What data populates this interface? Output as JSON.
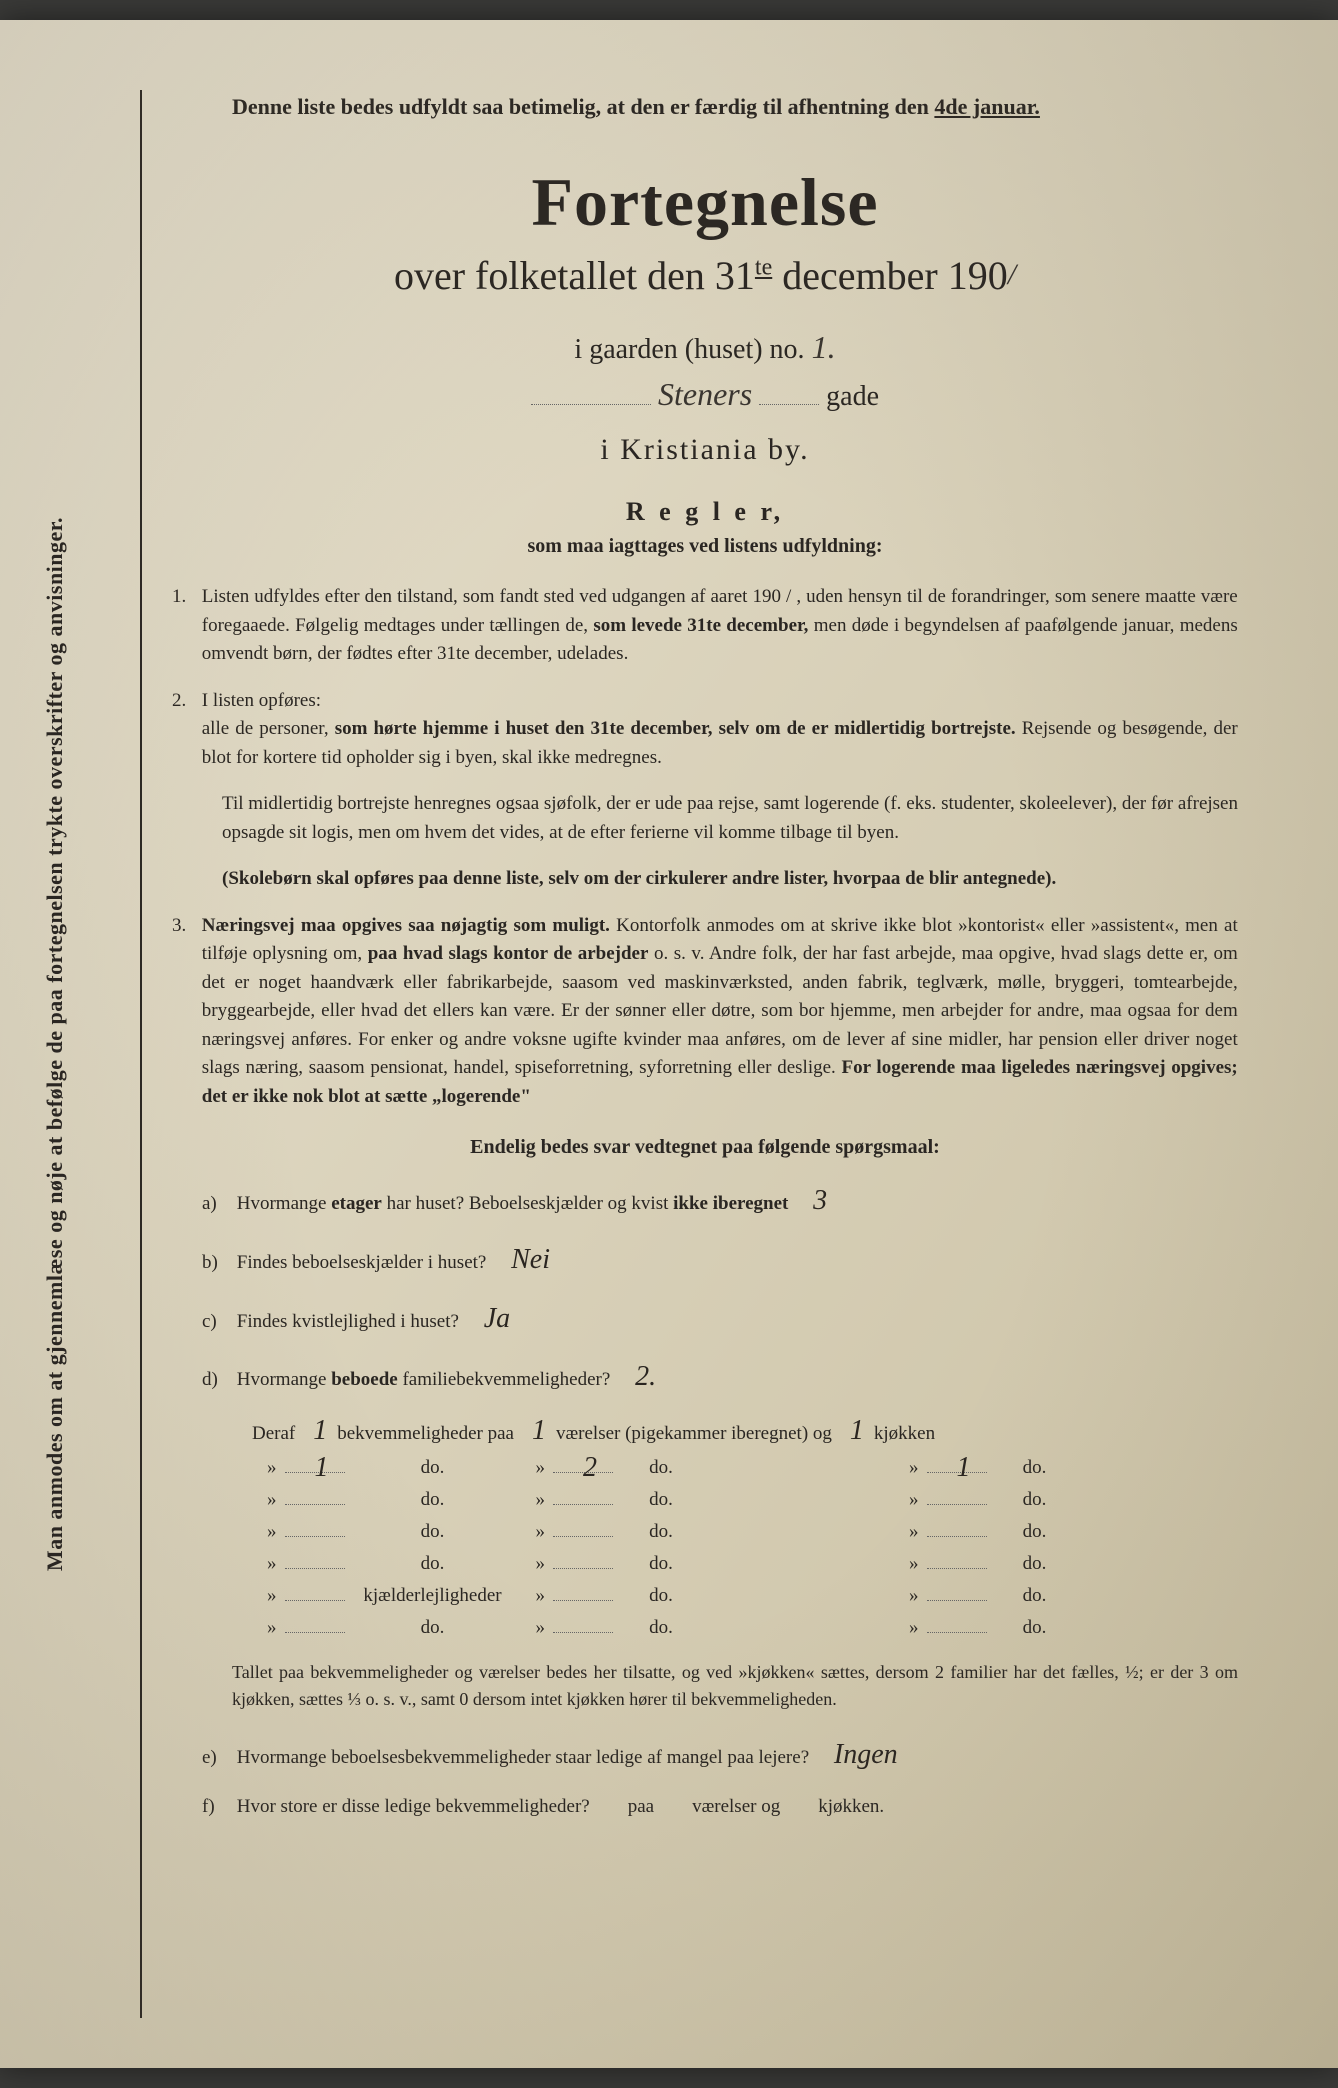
{
  "colors": {
    "paper_bg_start": "#e8e2d0",
    "paper_bg_mid": "#d8d0b8",
    "paper_bg_end": "#c8bea0",
    "text": "#2a2622",
    "handwriting": "#3a3530"
  },
  "vertical_note": "Man anmodes om at gjennemlæse og nøje at befølge de paa fortegnelsen trykte overskrifter og anvisninger.",
  "top_note": {
    "line": "Denne liste bedes udfyldt saa betimelig, at den er færdig til afhentning den",
    "date": "4de januar."
  },
  "title": "Fortegnelse",
  "subtitle_prefix": "over folketallet den 31",
  "subtitle_ordinal": "te",
  "subtitle_suffix": " december 190",
  "year_handwritten": "/",
  "gaarden_label": "i gaarden (huset) no.",
  "gaarden_value": "1.",
  "street_value": "Steners",
  "street_suffix": "gade",
  "city_line": "i Kristiania by.",
  "regler_heading": "R e g l e r,",
  "regler_sub": "som maa iagttages ved listens udfyldning:",
  "rules": {
    "r1": "Listen udfyldes efter den tilstand, som fandt sted ved udgangen af aaret 190 / , uden hensyn til de forandringer, som senere maatte være foregaaede. Følgelig medtages under tællingen de,",
    "r1_bold": "som levede 31te december,",
    "r1_tail": "men døde i begyndelsen af paafølgende januar, medens omvendt børn, der fødtes efter 31te december, udelades.",
    "r2_intro": "I listen opføres:",
    "r2_body1": "alle de personer,",
    "r2_bold1": "som hørte hjemme i huset den 31te december, selv om de er midlertidig bortrejste.",
    "r2_tail1": "Rejsende og besøgende, der blot for kortere tid opholder sig i byen, skal ikke medregnes.",
    "r2_para2": "Til midlertidig bortrejste henregnes ogsaa sjøfolk, der er ude paa rejse, samt logerende (f. eks. studenter, skoleelever), der før afrejsen opsagde sit logis, men om hvem det vides, at de efter ferierne vil komme tilbage til byen.",
    "r2_bold2": "(Skolebørn skal opføres paa denne liste, selv om der cirkulerer andre lister, hvorpaa de blir antegnede).",
    "r3_bold1": "Næringsvej maa opgives saa nøjagtig som muligt.",
    "r3_body": "Kontorfolk anmodes om at skrive ikke blot »kontorist« eller »assistent«, men at tilføje oplysning om,",
    "r3_bold2": "paa hvad slags kontor de arbejder",
    "r3_tail": "o. s. v. Andre folk, der har fast arbejde, maa opgive, hvad slags dette er, om det er noget haandværk eller fabrikarbejde, saasom ved maskinværksted, anden fabrik, teglværk, mølle, bryggeri, tomtearbejde, bryggearbejde, eller hvad det ellers kan være. Er der sønner eller døtre, som bor hjemme, men arbejder for andre, maa ogsaa for dem næringsvej anføres. For enker og andre voksne ugifte kvinder maa anføres, om de lever af sine midler, har pension eller driver noget slags næring, saasom pensionat, handel, spiseforretning, syforretning eller deslige.",
    "r3_bold3": "For logerende maa ligeledes næringsvej opgives; det er ikke nok blot at sætte „logerende\""
  },
  "questions_header": "Endelig bedes svar vedtegnet paa følgende spørgsmaal:",
  "questions": {
    "a": {
      "letter": "a)",
      "text": "Hvormange",
      "bold": "etager",
      "tail": "har huset?  Beboelseskjælder og kvist",
      "bold2": "ikke iberegnet",
      "answer": "3"
    },
    "b": {
      "letter": "b)",
      "text": "Findes beboelseskjælder i huset?",
      "answer": "Nei"
    },
    "c": {
      "letter": "c)",
      "text": "Findes kvistlejlighed i huset?",
      "answer": "Ja"
    },
    "d": {
      "letter": "d)",
      "text": "Hvormange",
      "bold": "beboede",
      "tail": "familiebekvemmeligheder?",
      "answer": "2."
    }
  },
  "deraf_line": {
    "prefix": "Deraf",
    "v1": "1",
    "mid1": "bekvemmeligheder paa",
    "v2": "1",
    "mid2": "værelser (pigekammer iberegnet) og",
    "v3": "1",
    "tail": "kjøkken"
  },
  "table_rows": [
    {
      "c1": "1",
      "label": "do.",
      "c2": "2",
      "label2": "do.",
      "c3": "1",
      "label3": "do."
    },
    {
      "c1": "",
      "label": "do.",
      "c2": "",
      "label2": "do.",
      "c3": "",
      "label3": "do."
    },
    {
      "c1": "",
      "label": "do.",
      "c2": "",
      "label2": "do.",
      "c3": "",
      "label3": "do."
    },
    {
      "c1": "",
      "label": "do.",
      "c2": "",
      "label2": "do.",
      "c3": "",
      "label3": "do."
    },
    {
      "c1": "",
      "label": "kjælderlejligheder",
      "c2": "",
      "label2": "do.",
      "c3": "",
      "label3": "do."
    },
    {
      "c1": "",
      "label": "do.",
      "c2": "",
      "label2": "do.",
      "c3": "",
      "label3": "do."
    }
  ],
  "footnote": "Tallet paa bekvemmeligheder og værelser bedes her tilsatte, og ved »kjøkken« sættes, dersom 2 familier har det fælles, ½; er der 3 om kjøkken, sættes ⅓ o. s. v., samt 0 dersom intet kjøkken hører til bekvemmeligheden.",
  "q_e": {
    "letter": "e)",
    "text": "Hvormange beboelsesbekvemmeligheder staar ledige af mangel paa lejere?",
    "answer": "Ingen"
  },
  "q_f": {
    "letter": "f)",
    "text": "Hvor store er disse ledige bekvemmeligheder?",
    "labels": [
      "paa",
      "værelser og",
      "kjøkken."
    ]
  }
}
